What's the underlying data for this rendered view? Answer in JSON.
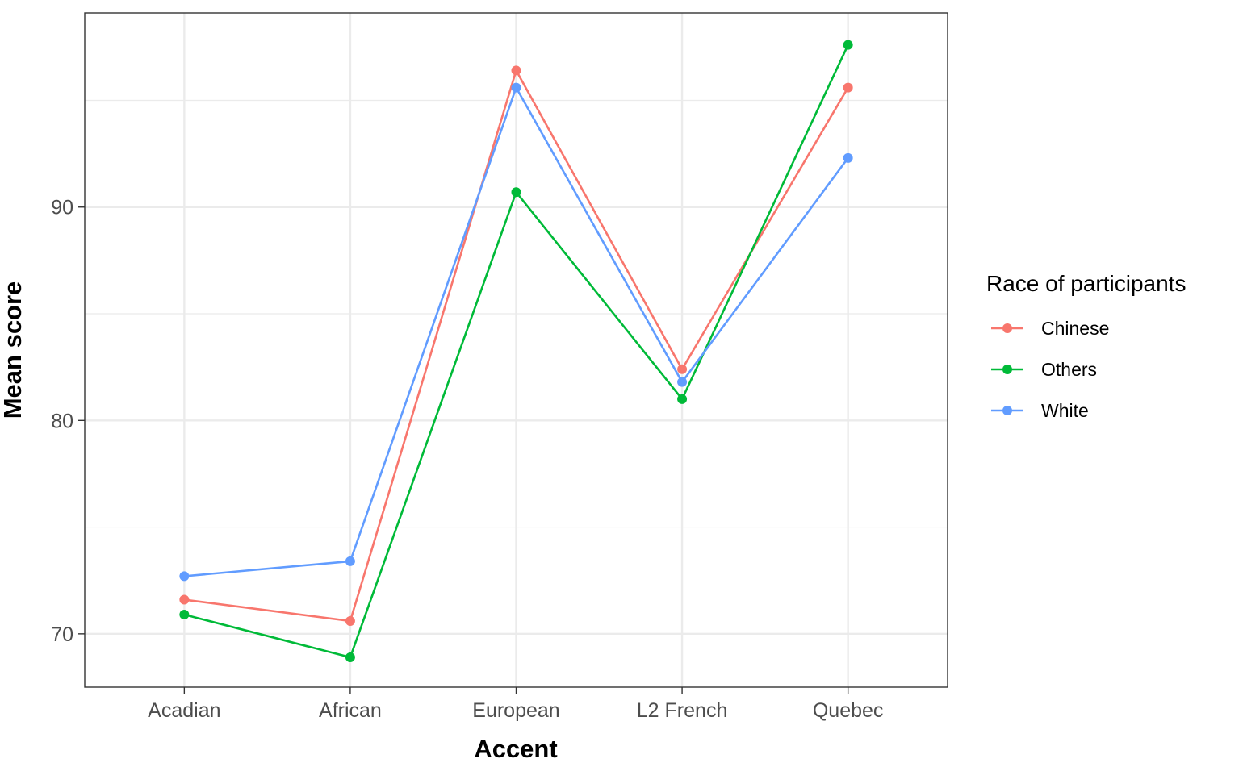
{
  "chart_data": {
    "type": "line",
    "xlabel": "Accent",
    "ylabel": "Mean score",
    "categories": [
      "Acadian",
      "African",
      "European",
      "L2 French",
      "Quebec"
    ],
    "ylim": [
      67.5,
      99.1
    ],
    "yticks": [
      70,
      80,
      90
    ],
    "grid": true,
    "legend": {
      "title": "Race of participants",
      "position": "right"
    },
    "series": [
      {
        "name": "Chinese",
        "color": "#F8766D",
        "values": [
          71.6,
          70.6,
          96.4,
          82.4,
          95.6
        ]
      },
      {
        "name": "Others",
        "color": "#00BA38",
        "values": [
          70.9,
          68.9,
          90.7,
          81.0,
          97.6
        ]
      },
      {
        "name": "White",
        "color": "#619CFF",
        "values": [
          72.7,
          73.4,
          95.6,
          81.8,
          92.3
        ]
      }
    ]
  }
}
